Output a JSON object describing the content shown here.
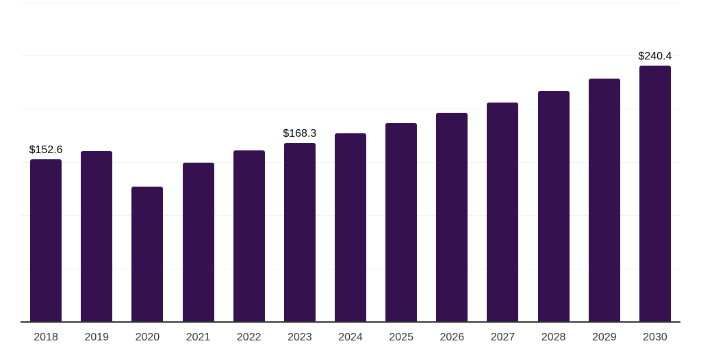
{
  "chart_data": {
    "type": "bar",
    "title": "",
    "xlabel": "",
    "ylabel": "",
    "categories": [
      "2018",
      "2019",
      "2020",
      "2021",
      "2022",
      "2023",
      "2024",
      "2025",
      "2026",
      "2027",
      "2028",
      "2029",
      "2030"
    ],
    "values": [
      152.6,
      160.0,
      127.0,
      149.3,
      160.8,
      168.3,
      177.1,
      186.3,
      196.0,
      206.2,
      217.0,
      228.4,
      240.4
    ],
    "data_labels": [
      "$152.6",
      null,
      null,
      null,
      null,
      "$168.3",
      null,
      null,
      null,
      null,
      null,
      null,
      "$240.4"
    ],
    "ylim": [
      0,
      300
    ],
    "grid_step": 50,
    "grid": true,
    "legend": false,
    "bar_color": "#351150",
    "gridline_color": "#f0f0f0",
    "axis_color": "#333333",
    "value_label_color": "#000000",
    "tick_label_color": "#333333"
  }
}
